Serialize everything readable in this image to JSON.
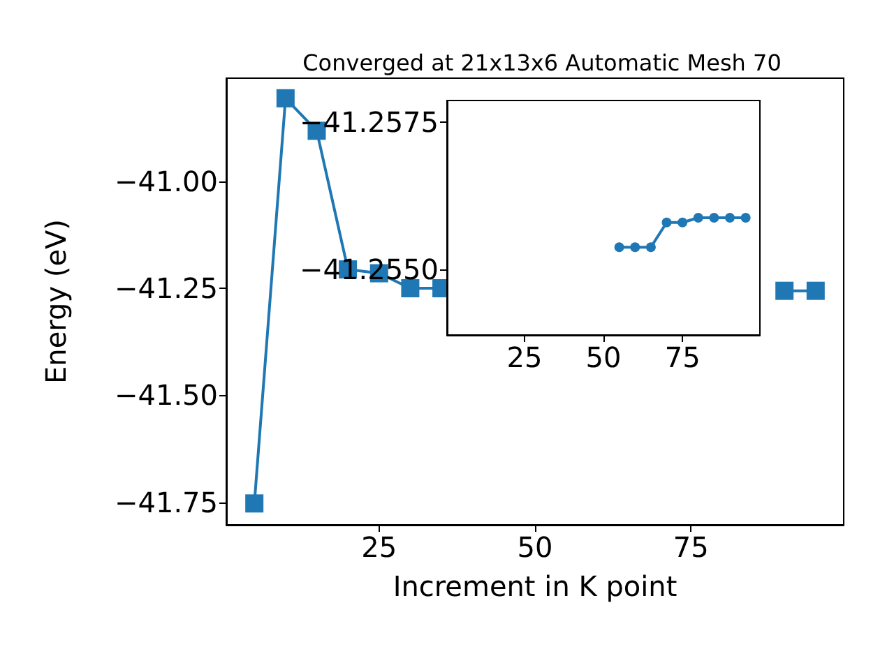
{
  "chart_data": [
    {
      "type": "line",
      "title": "Converged at 21x13x6 Automatic Mesh 70",
      "xlabel": "Increment in K point",
      "ylabel": "Energy (eV)",
      "x": [
        5,
        10,
        15,
        20,
        25,
        30,
        35,
        40,
        45,
        50,
        55,
        60,
        65,
        70,
        75,
        80,
        85,
        90,
        95
      ],
      "series": [
        {
          "color": "#1f77b4",
          "values": [
            -41.753,
            -40.806,
            -40.882,
            -41.206,
            -41.215,
            -41.25,
            -41.25,
            null,
            null,
            null,
            null,
            null,
            null,
            null,
            null,
            null,
            null,
            -41.256,
            -41.256
          ]
        }
      ],
      "marker": "square",
      "line_style": "solid",
      "xlim": [
        0.5,
        99.5
      ],
      "xticks": [
        25,
        50,
        75
      ],
      "ylim": [
        -41.803,
        -40.759
      ],
      "yticks": [
        {
          "value": -41.75,
          "label": "−41.75"
        },
        {
          "value": -41.5,
          "label": "−41.50"
        },
        {
          "value": -41.25,
          "label": "−41.25"
        },
        {
          "value": -41,
          "label": "−41.00"
        }
      ]
    },
    {
      "type": "line",
      "x": [
        55,
        60,
        65,
        70,
        75,
        80,
        85,
        90,
        95
      ],
      "series": [
        {
          "color": "#1f77b4",
          "values": [
            -41.25538,
            -41.25538,
            -41.25538,
            -41.2558,
            -41.2558,
            -41.25588,
            -41.25588,
            -41.25588,
            -41.25588
          ]
        }
      ],
      "marker": "circle",
      "line_style": "solid",
      "xlim": [
        0.5,
        99.5
      ],
      "xticks": [
        25,
        50,
        75
      ],
      "ylim": [
        -41.25389,
        -41.25787
      ],
      "yticks": [
        {
          "value": -41.2575,
          "label": "−41.2575"
        },
        {
          "value": -41.255,
          "label": "−41.2550"
        }
      ]
    }
  ]
}
